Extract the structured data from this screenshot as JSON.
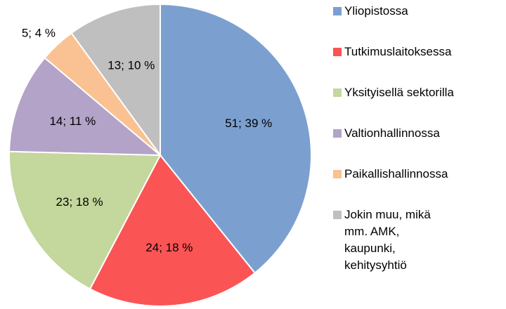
{
  "chart_data": {
    "type": "pie",
    "categories": [
      "Yliopistossa",
      "Tutkimuslaitoksessa",
      "Yksityisellä sektorilla",
      "Valtionhallinnossa",
      "Paikallishallinnossa",
      "Jokin muu, mikä mm. AMK, kaupunki, kehitysyhtiö"
    ],
    "values": [
      51,
      24,
      23,
      14,
      5,
      13
    ],
    "value_labels": [
      "51; 39 %",
      "24; 18 %",
      "23; 18 %",
      "14; 11 %",
      "5; 4 %",
      "13; 10 %"
    ],
    "colors": [
      "#7ba0d0",
      "#fb5455",
      "#c4d79c",
      "#b3a3c8",
      "#fac192",
      "#bfbfbf"
    ],
    "legend": "right"
  }
}
